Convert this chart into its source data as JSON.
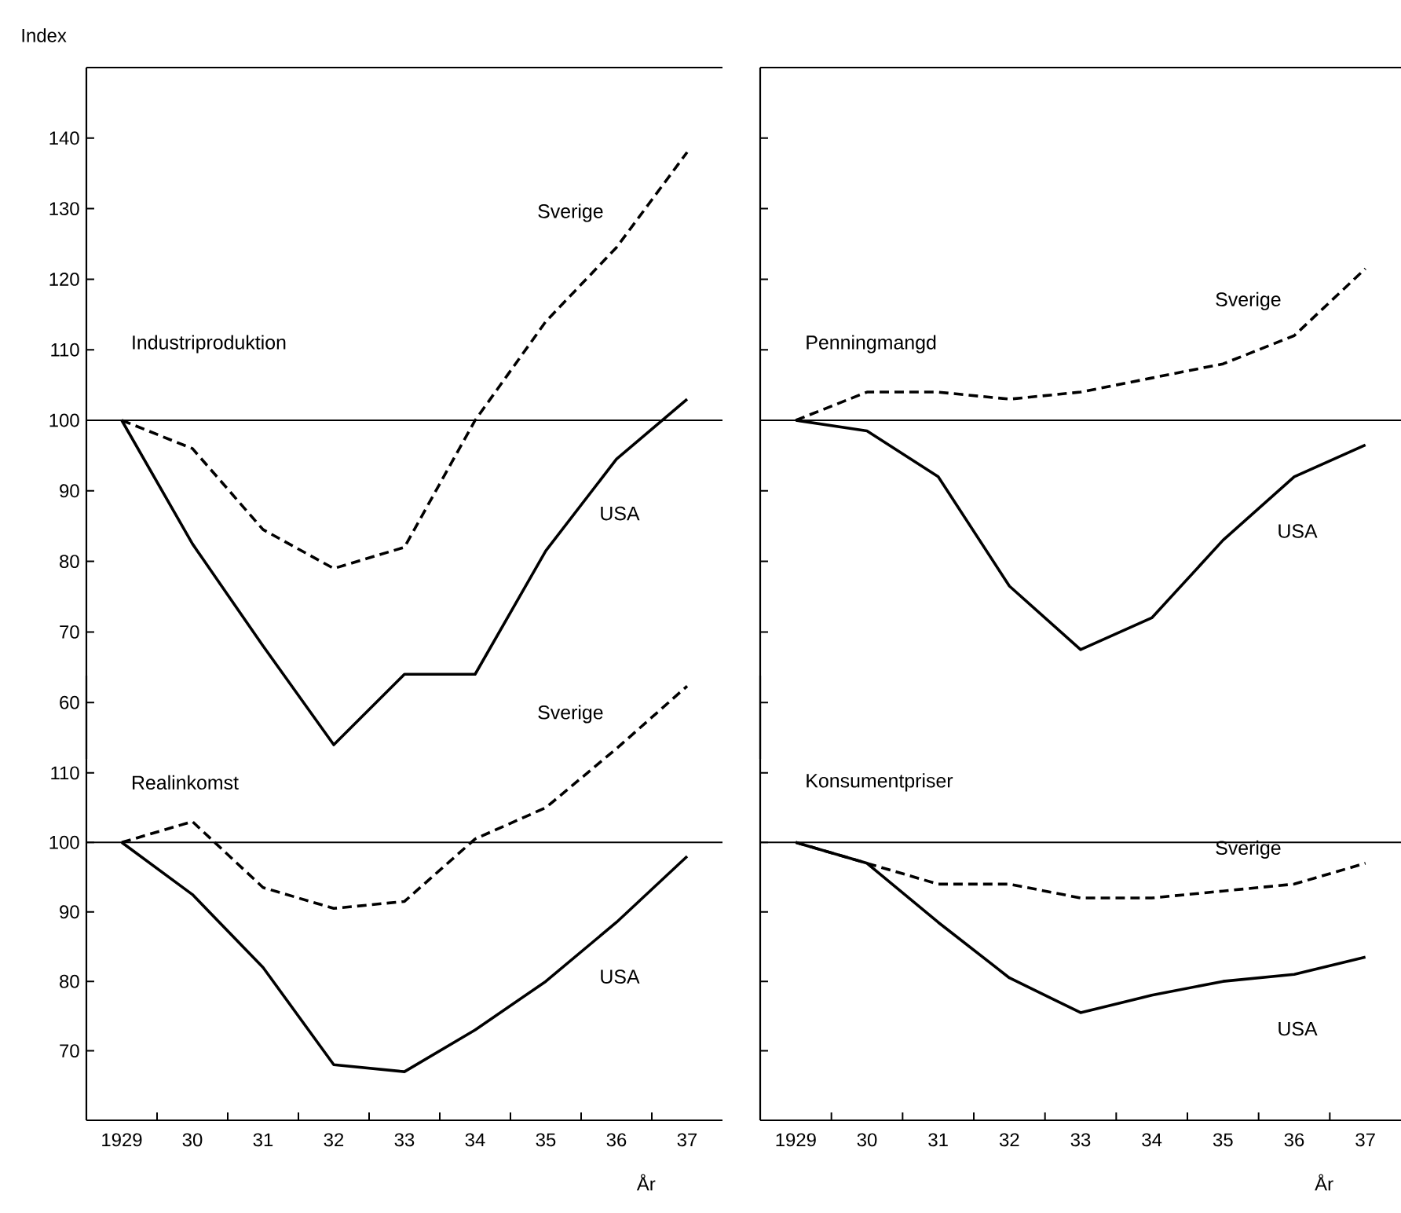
{
  "chart_data": [
    {
      "type": "line",
      "title": "Industriproduktion",
      "ylabel": "Index",
      "x": [
        1929,
        1930,
        1931,
        1932,
        1933,
        1934,
        1935,
        1936,
        1937
      ],
      "xlim": [
        1928.5,
        1937.5
      ],
      "ylim": [
        52,
        150
      ],
      "yticks": [
        60,
        70,
        80,
        90,
        100,
        110,
        120,
        130,
        140
      ],
      "tick_labels": "y",
      "ref_lines": [
        {
          "axis": "y",
          "value": 100
        }
      ],
      "series": [
        {
          "name": "Sverige",
          "color": "#000000",
          "line_style": "dashed",
          "values": [
            100,
            96,
            84.5,
            79,
            82,
            100,
            114,
            124.5,
            138
          ]
        },
        {
          "name": "USA",
          "color": "#000000",
          "line_style": "solid",
          "values": [
            100,
            82.5,
            68,
            54,
            64,
            64,
            81.5,
            94.5,
            103
          ]
        }
      ]
    },
    {
      "type": "line",
      "title": "Penningmangd",
      "x": [
        1929,
        1930,
        1931,
        1932,
        1933,
        1934,
        1935,
        1936,
        1937
      ],
      "xlim": [
        1928.5,
        1937.5
      ],
      "ylim": [
        52,
        150
      ],
      "yticks": [
        60,
        70,
        80,
        90,
        100,
        110,
        120,
        130,
        140
      ],
      "tick_labels": false,
      "ref_lines": [
        {
          "axis": "y",
          "value": 100
        }
      ],
      "series": [
        {
          "name": "Sverige",
          "color": "#000000",
          "line_style": "dashed",
          "values": [
            100,
            104,
            104,
            103,
            104,
            106,
            108,
            112,
            121.5
          ]
        },
        {
          "name": "USA",
          "color": "#000000",
          "line_style": "solid",
          "values": [
            100,
            98.5,
            92,
            76.5,
            67.5,
            72,
            83,
            92,
            96.5
          ]
        }
      ]
    },
    {
      "type": "line",
      "title": "Realinkomst",
      "xlabel": "År",
      "x": [
        1929,
        1930,
        1931,
        1932,
        1933,
        1934,
        1935,
        1936,
        1937
      ],
      "xlim": [
        1928.5,
        1937.5
      ],
      "xticks": [
        1929,
        {
          "value": 1930,
          "label": "30"
        },
        {
          "value": 1931,
          "label": "31"
        },
        {
          "value": 1932,
          "label": "32"
        },
        {
          "value": 1933,
          "label": "33"
        },
        {
          "value": 1934,
          "label": "34"
        },
        {
          "value": 1935,
          "label": "35"
        },
        {
          "value": 1936,
          "label": "36"
        },
        {
          "value": 1937,
          "label": "37"
        },
        {
          "value": 1929.5,
          "label": null
        },
        {
          "value": 1930.5,
          "label": null
        },
        {
          "value": 1931.5,
          "label": null
        },
        {
          "value": 1932.5,
          "label": null
        },
        {
          "value": 1933.5,
          "label": null
        },
        {
          "value": 1934.5,
          "label": null
        },
        {
          "value": 1935.5,
          "label": null
        },
        {
          "value": 1936.5,
          "label": null
        }
      ],
      "ylim": [
        60,
        124
      ],
      "yticks": [
        70,
        80,
        90,
        100,
        110
      ],
      "ref_lines": [
        {
          "axis": "y",
          "value": 100
        }
      ],
      "series": [
        {
          "name": "Sverige",
          "color": "#000000",
          "line_style": "dashed",
          "values": [
            100,
            103,
            93.5,
            90.5,
            91.5,
            100.5,
            105,
            113.5,
            122.5
          ]
        },
        {
          "name": "USA",
          "color": "#000000",
          "line_style": "solid",
          "values": [
            100,
            92.5,
            82,
            68,
            67,
            73,
            80,
            88.5,
            98
          ]
        }
      ]
    },
    {
      "type": "line",
      "title": "Konsumentpriser",
      "xlabel": "År",
      "x": [
        1929,
        1930,
        1931,
        1932,
        1933,
        1934,
        1935,
        1936,
        1937
      ],
      "xlim": [
        1928.5,
        1937.5
      ],
      "xticks": [
        1929,
        {
          "value": 1930,
          "label": "30"
        },
        {
          "value": 1931,
          "label": "31"
        },
        {
          "value": 1932,
          "label": "32"
        },
        {
          "value": 1933,
          "label": "33"
        },
        {
          "value": 1934,
          "label": "34"
        },
        {
          "value": 1935,
          "label": "35"
        },
        {
          "value": 1936,
          "label": "36"
        },
        {
          "value": 1937,
          "label": "37"
        },
        {
          "value": 1929.5,
          "label": null
        },
        {
          "value": 1930.5,
          "label": null
        },
        {
          "value": 1931.5,
          "label": null
        },
        {
          "value": 1932.5,
          "label": null
        },
        {
          "value": 1933.5,
          "label": null
        },
        {
          "value": 1934.5,
          "label": null
        },
        {
          "value": 1935.5,
          "label": null
        },
        {
          "value": 1936.5,
          "label": null
        }
      ],
      "ylim": [
        60,
        124
      ],
      "yticks": [
        70,
        80,
        90,
        100,
        110
      ],
      "tick_labels": "x",
      "ref_lines": [
        {
          "axis": "y",
          "value": 100
        }
      ],
      "series": [
        {
          "name": "Sverige",
          "color": "#000000",
          "line_style": "dashed",
          "values": [
            100,
            97,
            94,
            94,
            92,
            92,
            93,
            94,
            97
          ]
        },
        {
          "name": "USA",
          "color": "#000000",
          "line_style": "solid",
          "values": [
            100,
            97,
            88.5,
            80.5,
            75.5,
            78,
            80,
            81,
            83.5
          ]
        }
      ]
    }
  ]
}
